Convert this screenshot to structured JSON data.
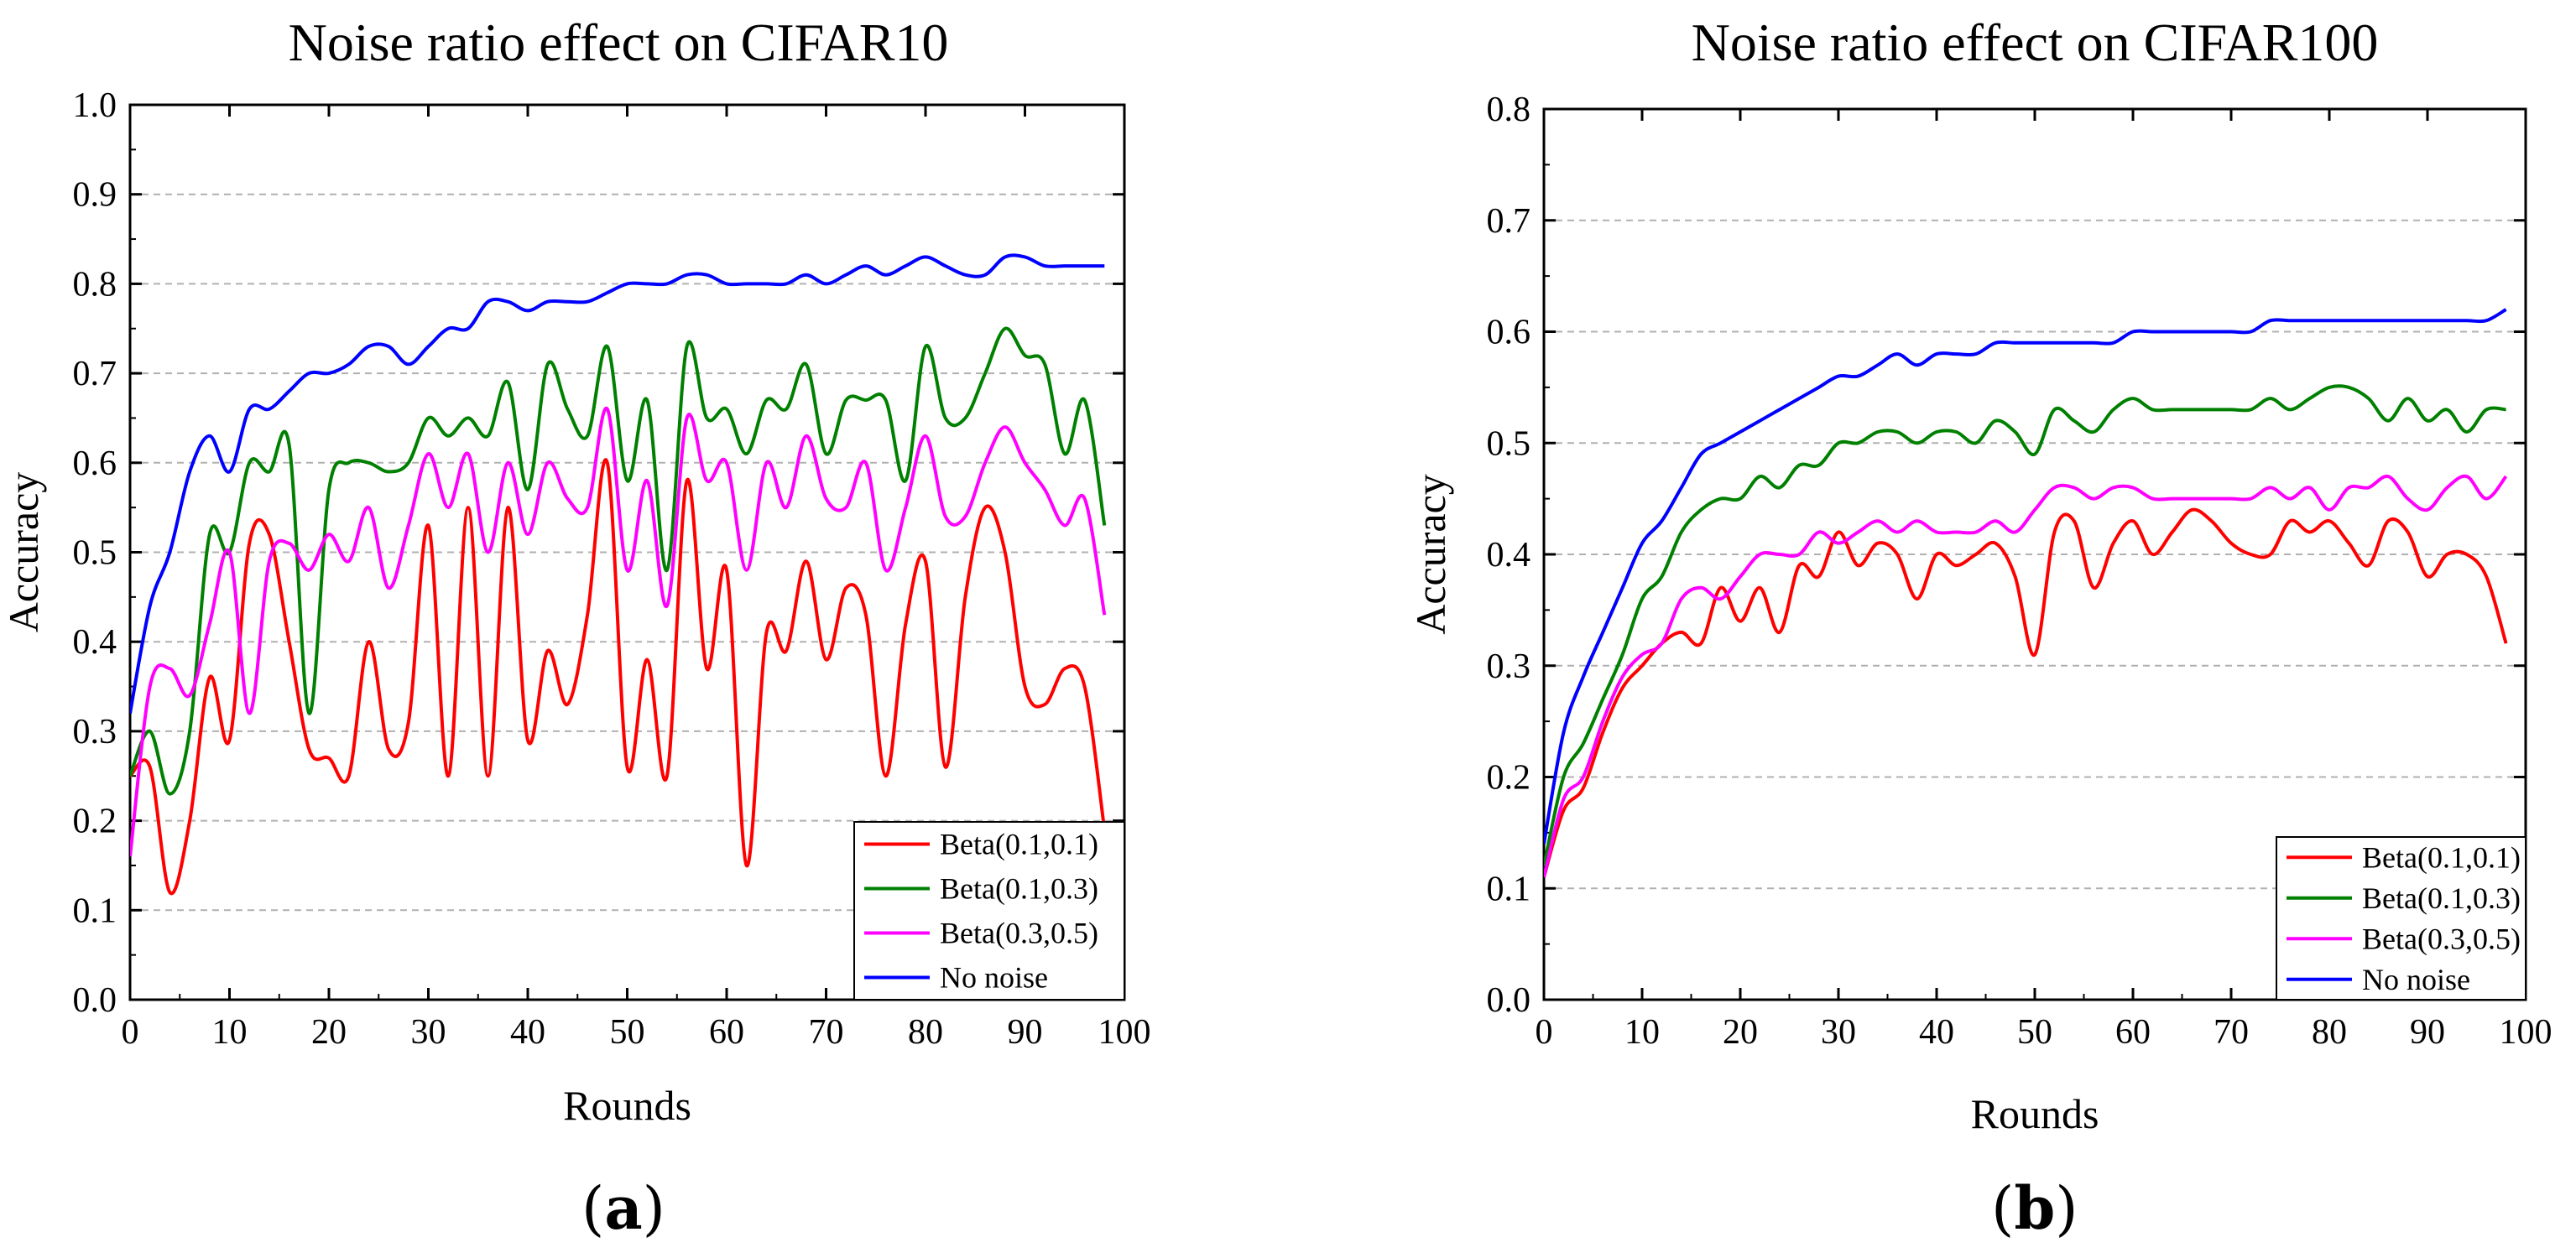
{
  "chart_data": [
    {
      "type": "line",
      "title": "Noise ratio effect on CIFAR10",
      "xlabel": "Rounds",
      "ylabel": "Accuracy",
      "panel_label": "a",
      "xlim": [
        0,
        100
      ],
      "ylim": [
        0.0,
        1.0
      ],
      "xticks": [
        "0",
        "10",
        "20",
        "30",
        "40",
        "50",
        "60",
        "70",
        "80",
        "90",
        "100"
      ],
      "yticks": [
        "0.0",
        "0.1",
        "0.2",
        "0.3",
        "0.4",
        "0.5",
        "0.6",
        "0.7",
        "0.8",
        "0.9",
        "1.0"
      ],
      "grid": "horizontal-dashed",
      "legend_position": "bottom-right",
      "x": [
        0,
        2,
        4,
        6,
        8,
        10,
        12,
        14,
        16,
        18,
        20,
        22,
        24,
        26,
        28,
        30,
        32,
        34,
        36,
        38,
        40,
        42,
        44,
        46,
        48,
        50,
        52,
        54,
        56,
        58,
        60,
        62,
        64,
        66,
        68,
        70,
        72,
        74,
        76,
        78,
        80,
        82,
        84,
        86,
        88,
        90,
        92,
        94,
        96,
        98
      ],
      "series": [
        {
          "name": "Beta(0.1,0.1)",
          "color": "#ff0000",
          "values": [
            0.25,
            0.26,
            0.12,
            0.2,
            0.36,
            0.29,
            0.51,
            0.52,
            0.4,
            0.28,
            0.27,
            0.25,
            0.4,
            0.28,
            0.31,
            0.53,
            0.25,
            0.55,
            0.25,
            0.55,
            0.29,
            0.39,
            0.33,
            0.43,
            0.6,
            0.26,
            0.38,
            0.25,
            0.58,
            0.37,
            0.48,
            0.15,
            0.41,
            0.39,
            0.49,
            0.38,
            0.46,
            0.43,
            0.25,
            0.42,
            0.49,
            0.26,
            0.45,
            0.55,
            0.5,
            0.35,
            0.33,
            0.37,
            0.35,
            0.19
          ]
        },
        {
          "name": "Beta(0.1,0.3)",
          "color": "#008000",
          "values": [
            0.25,
            0.3,
            0.23,
            0.3,
            0.52,
            0.5,
            0.6,
            0.59,
            0.62,
            0.32,
            0.57,
            0.6,
            0.6,
            0.59,
            0.6,
            0.65,
            0.63,
            0.65,
            0.63,
            0.69,
            0.57,
            0.71,
            0.66,
            0.63,
            0.73,
            0.58,
            0.67,
            0.48,
            0.73,
            0.65,
            0.66,
            0.61,
            0.67,
            0.66,
            0.71,
            0.61,
            0.67,
            0.67,
            0.67,
            0.58,
            0.73,
            0.65,
            0.65,
            0.7,
            0.75,
            0.72,
            0.71,
            0.61,
            0.67,
            0.53
          ]
        },
        {
          "name": "Beta(0.3,0.5)",
          "color": "#ff00ff",
          "values": [
            0.16,
            0.35,
            0.37,
            0.34,
            0.42,
            0.5,
            0.32,
            0.49,
            0.51,
            0.48,
            0.52,
            0.49,
            0.55,
            0.46,
            0.53,
            0.61,
            0.55,
            0.61,
            0.5,
            0.6,
            0.52,
            0.6,
            0.56,
            0.55,
            0.66,
            0.48,
            0.58,
            0.44,
            0.65,
            0.58,
            0.6,
            0.48,
            0.6,
            0.55,
            0.63,
            0.56,
            0.55,
            0.6,
            0.48,
            0.55,
            0.63,
            0.54,
            0.54,
            0.6,
            0.64,
            0.6,
            0.57,
            0.53,
            0.56,
            0.43
          ]
        },
        {
          "name": "No noise",
          "color": "#0000ff",
          "values": [
            0.32,
            0.44,
            0.5,
            0.59,
            0.63,
            0.59,
            0.66,
            0.66,
            0.68,
            0.7,
            0.7,
            0.71,
            0.73,
            0.73,
            0.71,
            0.73,
            0.75,
            0.75,
            0.78,
            0.78,
            0.77,
            0.78,
            0.78,
            0.78,
            0.79,
            0.8,
            0.8,
            0.8,
            0.81,
            0.81,
            0.8,
            0.8,
            0.8,
            0.8,
            0.81,
            0.8,
            0.81,
            0.82,
            0.81,
            0.82,
            0.83,
            0.82,
            0.81,
            0.81,
            0.83,
            0.83,
            0.82,
            0.82,
            0.82,
            0.82
          ]
        }
      ]
    },
    {
      "type": "line",
      "title": "Noise ratio effect on CIFAR100",
      "xlabel": "Rounds",
      "ylabel": "Accuracy",
      "panel_label": "b",
      "xlim": [
        0,
        100
      ],
      "ylim": [
        0.0,
        0.8
      ],
      "xticks": [
        "0",
        "10",
        "20",
        "30",
        "40",
        "50",
        "60",
        "70",
        "80",
        "90",
        "100"
      ],
      "yticks": [
        "0.0",
        "0.1",
        "0.2",
        "0.3",
        "0.4",
        "0.5",
        "0.6",
        "0.7",
        "0.8"
      ],
      "grid": "horizontal-dashed",
      "legend_position": "bottom-right",
      "x": [
        0,
        2,
        4,
        6,
        8,
        10,
        12,
        14,
        16,
        18,
        20,
        22,
        24,
        26,
        28,
        30,
        32,
        34,
        36,
        38,
        40,
        42,
        44,
        46,
        48,
        50,
        52,
        54,
        56,
        58,
        60,
        62,
        64,
        66,
        68,
        70,
        72,
        74,
        76,
        78,
        80,
        82,
        84,
        86,
        88,
        90,
        92,
        94,
        96,
        98
      ],
      "series": [
        {
          "name": "Beta(0.1,0.1)",
          "color": "#ff0000",
          "values": [
            0.11,
            0.17,
            0.19,
            0.24,
            0.28,
            0.3,
            0.32,
            0.33,
            0.32,
            0.37,
            0.34,
            0.37,
            0.33,
            0.39,
            0.38,
            0.42,
            0.39,
            0.41,
            0.4,
            0.36,
            0.4,
            0.39,
            0.4,
            0.41,
            0.38,
            0.31,
            0.42,
            0.43,
            0.37,
            0.41,
            0.43,
            0.4,
            0.42,
            0.44,
            0.43,
            0.41,
            0.4,
            0.4,
            0.43,
            0.42,
            0.43,
            0.41,
            0.39,
            0.43,
            0.42,
            0.38,
            0.4,
            0.4,
            0.38,
            0.32
          ]
        },
        {
          "name": "Beta(0.1,0.3)",
          "color": "#008000",
          "values": [
            0.12,
            0.2,
            0.23,
            0.27,
            0.31,
            0.36,
            0.38,
            0.42,
            0.44,
            0.45,
            0.45,
            0.47,
            0.46,
            0.48,
            0.48,
            0.5,
            0.5,
            0.51,
            0.51,
            0.5,
            0.51,
            0.51,
            0.5,
            0.52,
            0.51,
            0.49,
            0.53,
            0.52,
            0.51,
            0.53,
            0.54,
            0.53,
            0.53,
            0.53,
            0.53,
            0.53,
            0.53,
            0.54,
            0.53,
            0.54,
            0.55,
            0.55,
            0.54,
            0.52,
            0.54,
            0.52,
            0.53,
            0.51,
            0.53,
            0.53
          ]
        },
        {
          "name": "Beta(0.3,0.5)",
          "color": "#ff00ff",
          "values": [
            0.11,
            0.18,
            0.2,
            0.25,
            0.29,
            0.31,
            0.32,
            0.36,
            0.37,
            0.36,
            0.38,
            0.4,
            0.4,
            0.4,
            0.42,
            0.41,
            0.42,
            0.43,
            0.42,
            0.43,
            0.42,
            0.42,
            0.42,
            0.43,
            0.42,
            0.44,
            0.46,
            0.46,
            0.45,
            0.46,
            0.46,
            0.45,
            0.45,
            0.45,
            0.45,
            0.45,
            0.45,
            0.46,
            0.45,
            0.46,
            0.44,
            0.46,
            0.46,
            0.47,
            0.45,
            0.44,
            0.46,
            0.47,
            0.45,
            0.47
          ]
        },
        {
          "name": "No noise",
          "color": "#0000ff",
          "values": [
            0.14,
            0.24,
            0.29,
            0.33,
            0.37,
            0.41,
            0.43,
            0.46,
            0.49,
            0.5,
            0.51,
            0.52,
            0.53,
            0.54,
            0.55,
            0.56,
            0.56,
            0.57,
            0.58,
            0.57,
            0.58,
            0.58,
            0.58,
            0.59,
            0.59,
            0.59,
            0.59,
            0.59,
            0.59,
            0.59,
            0.6,
            0.6,
            0.6,
            0.6,
            0.6,
            0.6,
            0.6,
            0.61,
            0.61,
            0.61,
            0.61,
            0.61,
            0.61,
            0.61,
            0.61,
            0.61,
            0.61,
            0.61,
            0.61,
            0.62
          ]
        }
      ]
    }
  ]
}
